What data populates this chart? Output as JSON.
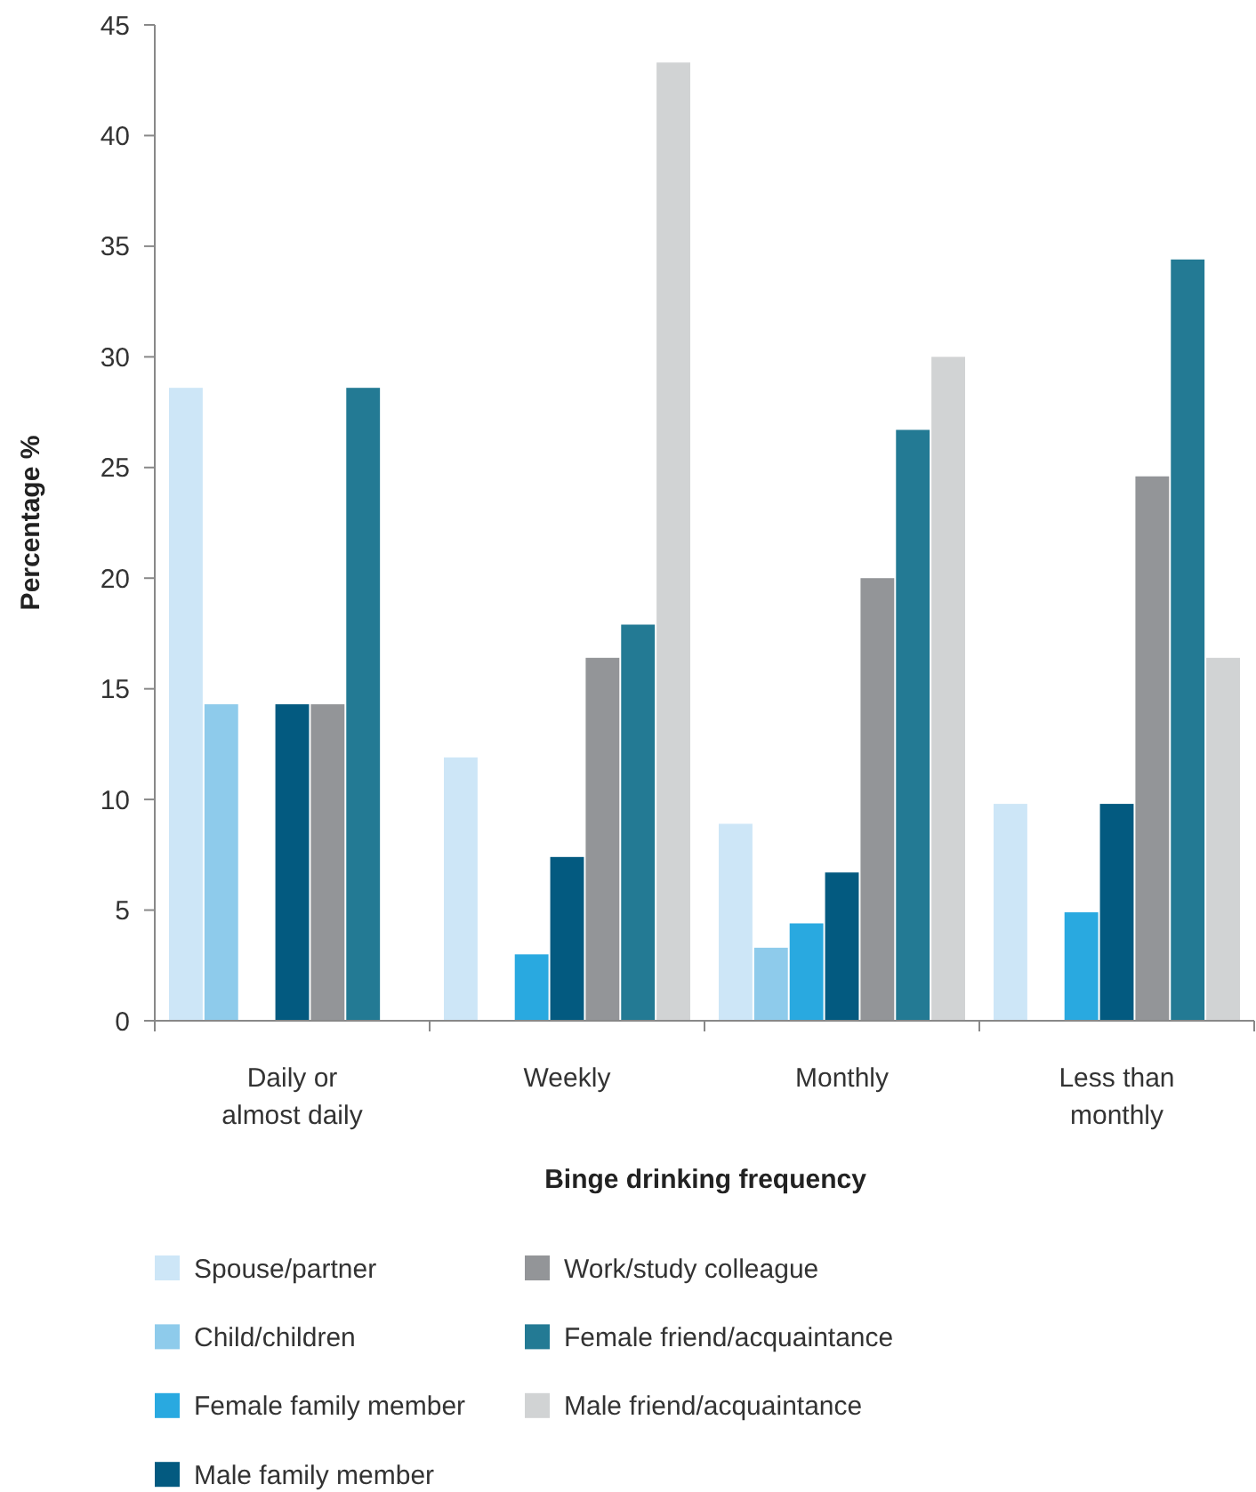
{
  "chart_data": {
    "type": "bar",
    "xlabel": "Binge drinking frequency",
    "ylabel": "Percentage %",
    "categories": [
      "Daily or almost daily",
      "Weekly",
      "Monthly",
      "Less than monthly"
    ],
    "ylim": [
      0,
      45
    ],
    "yticks": [
      0,
      5,
      10,
      15,
      20,
      25,
      30,
      35,
      40,
      45
    ],
    "grid": false,
    "legend": "bottom",
    "series": [
      {
        "name": "Spouse/partner",
        "color": "#cde6f7",
        "values": [
          28.6,
          11.9,
          8.9,
          9.8
        ]
      },
      {
        "name": "Child/children",
        "color": "#8ecbeb",
        "values": [
          14.3,
          0,
          3.3,
          0
        ]
      },
      {
        "name": "Female family member",
        "color": "#29a9e0",
        "values": [
          0,
          3.0,
          4.4,
          4.9
        ]
      },
      {
        "name": "Male family member",
        "color": "#035a80",
        "values": [
          14.3,
          7.4,
          6.7,
          9.8
        ]
      },
      {
        "name": "Work/study colleague",
        "color": "#939598",
        "values": [
          14.3,
          16.4,
          20.0,
          24.6
        ]
      },
      {
        "name": "Female friend/acquaintance",
        "color": "#237a94",
        "values": [
          28.6,
          17.9,
          26.7,
          34.4
        ]
      },
      {
        "name": "Male friend/acquaintance",
        "color": "#d1d3d4",
        "values": [
          0,
          43.3,
          30.0,
          16.4
        ]
      }
    ]
  }
}
